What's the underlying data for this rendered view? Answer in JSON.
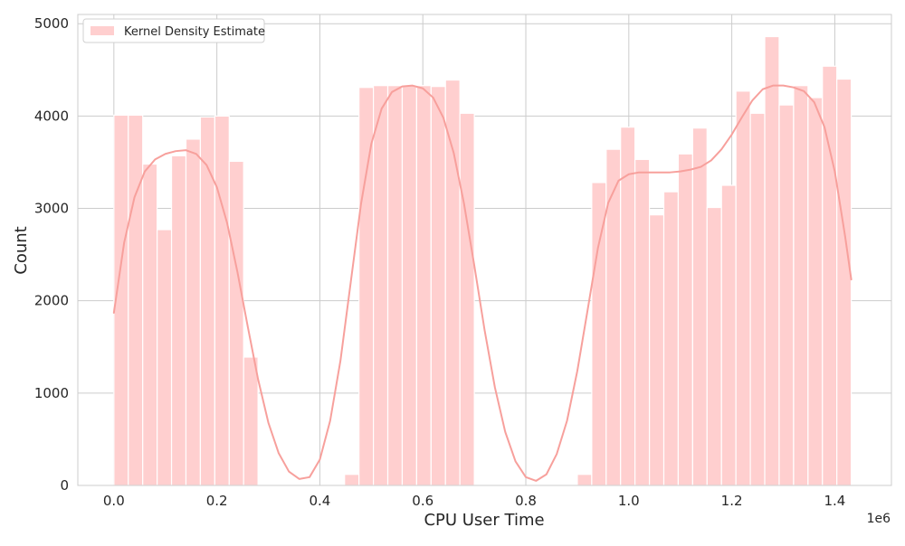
{
  "chart_data": {
    "type": "bar",
    "subtype": "histogram-with-kde",
    "title": "",
    "xlabel": "CPU User Time",
    "ylabel": "Count",
    "x_offset_label": "1e6",
    "x_scale_factor": 1000000,
    "xlim": [
      -70000,
      1510000
    ],
    "ylim": [
      0,
      5100
    ],
    "x_ticks": [
      0,
      200000,
      400000,
      600000,
      800000,
      1000000,
      1200000,
      1400000
    ],
    "x_tick_labels": [
      "0.0",
      "0.2",
      "0.4",
      "0.6",
      "0.8",
      "1.0",
      "1.2",
      "1.4"
    ],
    "y_ticks": [
      0,
      1000,
      2000,
      3000,
      4000,
      5000
    ],
    "y_tick_labels": [
      "0",
      "1000",
      "2000",
      "3000",
      "4000",
      "5000"
    ],
    "grid": true,
    "legend": {
      "position": "top-left",
      "entries": [
        "Kernel Density Estimate"
      ]
    },
    "bar_color": "#ffcfcf",
    "bar_edge_color": "#ffffff",
    "kde_color": "#f7a09c",
    "bin_width": 28000,
    "bins": [
      {
        "x_start": 0,
        "count": 4010
      },
      {
        "x_start": 28000,
        "count": 4010
      },
      {
        "x_start": 56000,
        "count": 3480
      },
      {
        "x_start": 84000,
        "count": 2770
      },
      {
        "x_start": 112000,
        "count": 3570
      },
      {
        "x_start": 140000,
        "count": 3750
      },
      {
        "x_start": 168000,
        "count": 3990
      },
      {
        "x_start": 196000,
        "count": 4000
      },
      {
        "x_start": 224000,
        "count": 3510
      },
      {
        "x_start": 252000,
        "count": 1390
      },
      {
        "x_start": 448000,
        "count": 120
      },
      {
        "x_start": 476000,
        "count": 4310
      },
      {
        "x_start": 504000,
        "count": 4330
      },
      {
        "x_start": 532000,
        "count": 4330
      },
      {
        "x_start": 560000,
        "count": 4330
      },
      {
        "x_start": 588000,
        "count": 4330
      },
      {
        "x_start": 616000,
        "count": 4320
      },
      {
        "x_start": 644000,
        "count": 4390
      },
      {
        "x_start": 672000,
        "count": 4030
      },
      {
        "x_start": 900000,
        "count": 120
      },
      {
        "x_start": 928000,
        "count": 3280
      },
      {
        "x_start": 956000,
        "count": 3640
      },
      {
        "x_start": 984000,
        "count": 3880
      },
      {
        "x_start": 1012000,
        "count": 3530
      },
      {
        "x_start": 1040000,
        "count": 2930
      },
      {
        "x_start": 1068000,
        "count": 3180
      },
      {
        "x_start": 1096000,
        "count": 3590
      },
      {
        "x_start": 1124000,
        "count": 3870
      },
      {
        "x_start": 1152000,
        "count": 3010
      },
      {
        "x_start": 1180000,
        "count": 3250
      },
      {
        "x_start": 1208000,
        "count": 4270
      },
      {
        "x_start": 1236000,
        "count": 4030
      },
      {
        "x_start": 1264000,
        "count": 4860
      },
      {
        "x_start": 1292000,
        "count": 4120
      },
      {
        "x_start": 1320000,
        "count": 4330
      },
      {
        "x_start": 1348000,
        "count": 4200
      },
      {
        "x_start": 1376000,
        "count": 4540
      },
      {
        "x_start": 1404000,
        "count": 4400
      }
    ],
    "kde_curve": {
      "x": [
        0,
        20000,
        40000,
        60000,
        80000,
        100000,
        120000,
        140000,
        160000,
        180000,
        200000,
        220000,
        240000,
        260000,
        280000,
        300000,
        320000,
        340000,
        360000,
        380000,
        400000,
        420000,
        440000,
        460000,
        480000,
        500000,
        520000,
        540000,
        560000,
        580000,
        600000,
        620000,
        640000,
        660000,
        680000,
        700000,
        720000,
        740000,
        760000,
        780000,
        800000,
        820000,
        840000,
        860000,
        880000,
        900000,
        920000,
        940000,
        960000,
        980000,
        1000000,
        1020000,
        1040000,
        1060000,
        1080000,
        1100000,
        1120000,
        1140000,
        1160000,
        1180000,
        1200000,
        1220000,
        1240000,
        1260000,
        1280000,
        1300000,
        1320000,
        1340000,
        1360000,
        1380000,
        1400000,
        1420000,
        1432000
      ],
      "y": [
        1870,
        2630,
        3120,
        3400,
        3530,
        3590,
        3620,
        3630,
        3590,
        3470,
        3230,
        2840,
        2310,
        1720,
        1150,
        680,
        350,
        150,
        70,
        90,
        280,
        700,
        1350,
        2200,
        3050,
        3700,
        4080,
        4260,
        4320,
        4330,
        4300,
        4200,
        3980,
        3600,
        3050,
        2380,
        1680,
        1060,
        580,
        260,
        90,
        50,
        120,
        340,
        700,
        1240,
        1900,
        2570,
        3060,
        3300,
        3370,
        3390,
        3390,
        3390,
        3390,
        3400,
        3420,
        3450,
        3520,
        3640,
        3800,
        3990,
        4170,
        4290,
        4330,
        4330,
        4310,
        4270,
        4150,
        3880,
        3400,
        2700,
        2230
      ]
    }
  }
}
